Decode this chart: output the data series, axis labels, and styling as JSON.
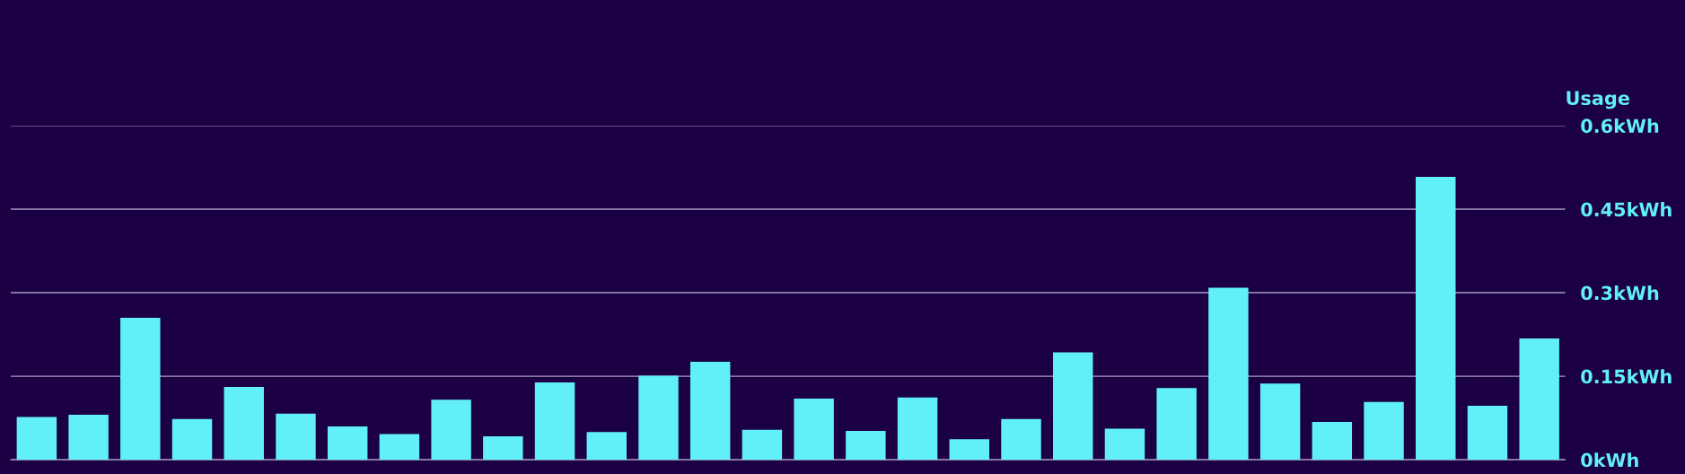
{
  "chart_data": {
    "type": "bar",
    "ylabel": "Usage",
    "categories": [
      null,
      null,
      null,
      null,
      null,
      null,
      null,
      null,
      null,
      null,
      null,
      null,
      null,
      null,
      null,
      null,
      null,
      null,
      null,
      null,
      null,
      null,
      null,
      null,
      null,
      null,
      null,
      null,
      null,
      null
    ],
    "values": [
      0.077,
      0.081,
      0.255,
      0.073,
      0.131,
      0.083,
      0.06,
      0.046,
      0.108,
      0.042,
      0.139,
      0.05,
      0.151,
      0.176,
      0.054,
      0.11,
      0.052,
      0.112,
      0.037,
      0.073,
      0.193,
      0.056,
      0.129,
      0.309,
      0.137,
      0.068,
      0.104,
      0.508,
      0.097,
      0.218
    ],
    "color": "#62f0f8",
    "ylim": [
      0,
      0.6
    ],
    "yticks": [
      {
        "value": 0,
        "label": "0kWh"
      },
      {
        "value": 0.15,
        "label": "0.15kWh"
      },
      {
        "value": 0.3,
        "label": "0.3kWh"
      },
      {
        "value": 0.45,
        "label": "0.45kWh"
      },
      {
        "value": 0.6,
        "label": "0.6kWh"
      }
    ],
    "grid": "y",
    "legend": false
  }
}
